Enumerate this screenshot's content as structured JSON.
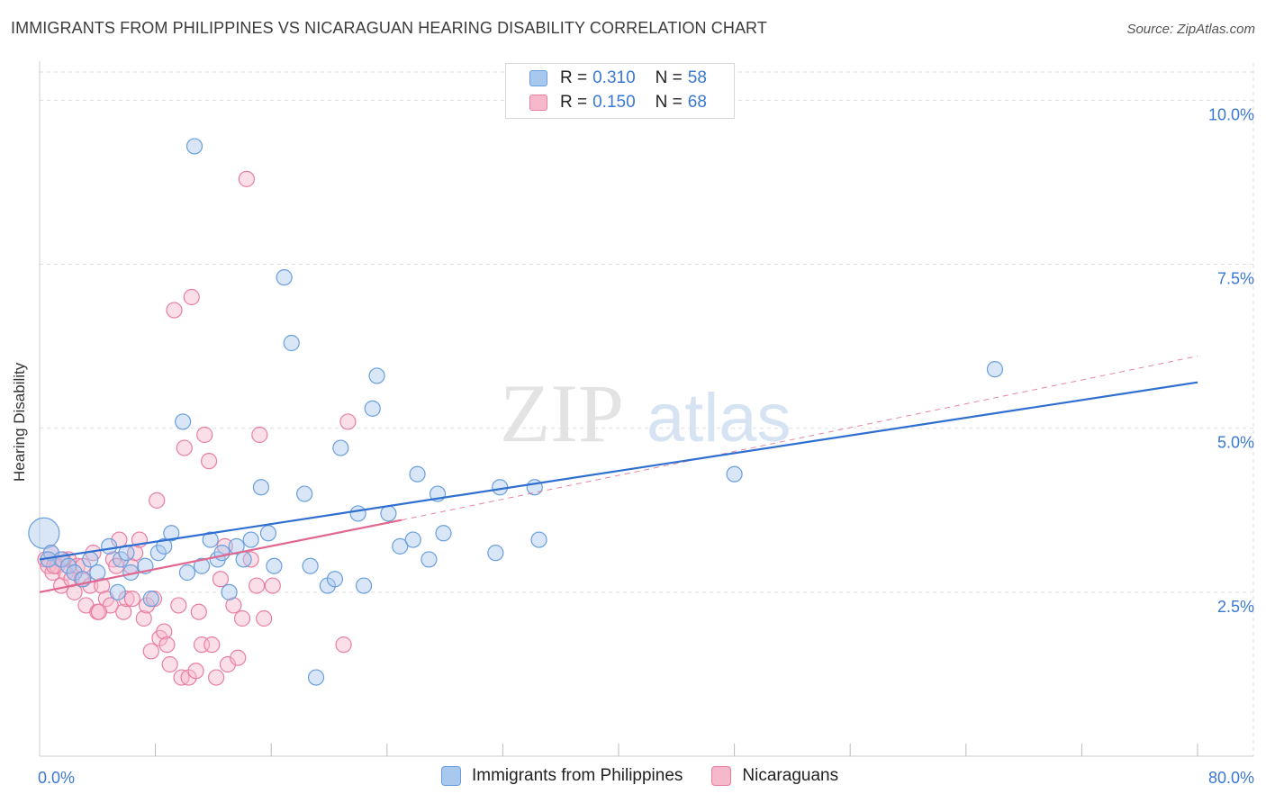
{
  "title": "IMMIGRANTS FROM PHILIPPINES VS NICARAGUAN HEARING DISABILITY CORRELATION CHART",
  "source": "Source: ZipAtlas.com",
  "watermark": {
    "zip": "ZIP",
    "atlas": "atlas"
  },
  "colors": {
    "blue_fill": "#a9c8ee",
    "blue_stroke": "#6a9fde",
    "blue_line": "#2f6fd0",
    "pink_fill": "#f6b8cb",
    "pink_stroke": "#e87fa0",
    "pink_line": "#e0678f",
    "grid": "#dddddd",
    "tick_text": "#3a78d4"
  },
  "legend": {
    "rows": [
      {
        "r_label": "R = ",
        "r_value": "0.310",
        "n_label": "N = ",
        "n_value": "58",
        "series": "blue"
      },
      {
        "r_label": "R = ",
        "r_value": "0.150",
        "n_label": "N = ",
        "n_value": "68",
        "series": "pink"
      }
    ]
  },
  "bottom_legend": [
    {
      "label": "Immigrants from Philippines",
      "series": "blue"
    },
    {
      "label": "Nicaraguans",
      "series": "pink"
    }
  ],
  "chart_data": {
    "type": "scatter",
    "title": "IMMIGRANTS FROM PHILIPPINES VS NICARAGUAN HEARING DISABILITY CORRELATION CHART",
    "xlabel": "",
    "ylabel": "Hearing Disability",
    "xlim": [
      0,
      80
    ],
    "ylim": [
      0,
      10.5
    ],
    "x_tick_labels": [
      {
        "value": 0,
        "label": "0.0%"
      },
      {
        "value": 80,
        "label": "80.0%"
      }
    ],
    "y_tick_labels": [
      {
        "value": 2.5,
        "label": "2.5%"
      },
      {
        "value": 5.0,
        "label": "5.0%"
      },
      {
        "value": 7.5,
        "label": "7.5%"
      },
      {
        "value": 10.0,
        "label": "10.0%"
      }
    ],
    "grid": true,
    "series": [
      {
        "name": "Immigrants from Philippines",
        "color": "blue",
        "trend": {
          "x0": 0,
          "y0": 3.0,
          "x1": 80,
          "y1": 5.7,
          "dashed_extension": false
        },
        "points": [
          [
            0.3,
            3.4,
            "large"
          ],
          [
            0.8,
            3.1
          ],
          [
            1.5,
            3.0
          ],
          [
            2.0,
            2.9
          ],
          [
            2.4,
            2.8
          ],
          [
            3.0,
            2.7
          ],
          [
            3.5,
            3.0
          ],
          [
            4.0,
            2.8
          ],
          [
            4.8,
            3.2
          ],
          [
            5.4,
            2.5
          ],
          [
            5.6,
            3.0
          ],
          [
            6.0,
            3.1
          ],
          [
            6.3,
            2.8
          ],
          [
            7.3,
            2.9
          ],
          [
            7.7,
            2.4
          ],
          [
            8.2,
            3.1
          ],
          [
            8.6,
            3.2
          ],
          [
            9.1,
            3.4
          ],
          [
            9.9,
            5.1
          ],
          [
            10.2,
            2.8
          ],
          [
            10.7,
            9.3
          ],
          [
            11.2,
            2.9
          ],
          [
            11.8,
            3.3
          ],
          [
            12.3,
            3.0
          ],
          [
            12.6,
            3.1
          ],
          [
            13.1,
            2.5
          ],
          [
            13.6,
            3.2
          ],
          [
            14.1,
            3.0
          ],
          [
            14.6,
            3.3
          ],
          [
            15.3,
            4.1
          ],
          [
            15.8,
            3.4
          ],
          [
            16.2,
            2.9
          ],
          [
            16.9,
            7.3
          ],
          [
            17.4,
            6.3
          ],
          [
            18.3,
            4.0
          ],
          [
            18.7,
            2.9
          ],
          [
            19.1,
            1.2
          ],
          [
            19.9,
            2.6
          ],
          [
            20.4,
            2.7
          ],
          [
            20.8,
            4.7
          ],
          [
            22.0,
            3.7
          ],
          [
            22.4,
            2.6
          ],
          [
            23.0,
            5.3
          ],
          [
            23.3,
            5.8
          ],
          [
            24.1,
            3.7
          ],
          [
            24.9,
            3.2
          ],
          [
            25.8,
            3.3
          ],
          [
            26.1,
            4.3
          ],
          [
            26.9,
            3.0
          ],
          [
            27.5,
            4.0
          ],
          [
            27.9,
            3.4
          ],
          [
            31.5,
            3.1
          ],
          [
            31.8,
            4.1
          ],
          [
            34.2,
            4.1
          ],
          [
            34.5,
            3.3
          ],
          [
            48.0,
            4.3
          ],
          [
            66.0,
            5.9
          ],
          [
            0.6,
            3.0
          ]
        ]
      },
      {
        "name": "Nicaraguans",
        "color": "pink",
        "trend": {
          "x0": 0,
          "y0": 2.5,
          "x1": 25,
          "y1": 3.6,
          "dashed_extension": true,
          "x_ext": 80,
          "y_ext": 6.1
        },
        "points": [
          [
            0.4,
            3.0
          ],
          [
            0.6,
            2.9
          ],
          [
            0.9,
            2.8
          ],
          [
            1.2,
            2.9
          ],
          [
            1.5,
            2.6
          ],
          [
            1.8,
            2.8
          ],
          [
            2.0,
            3.0
          ],
          [
            2.2,
            2.7
          ],
          [
            2.6,
            2.9
          ],
          [
            2.9,
            2.7
          ],
          [
            3.2,
            2.3
          ],
          [
            3.5,
            2.6
          ],
          [
            3.7,
            3.1
          ],
          [
            4.0,
            2.2
          ],
          [
            4.3,
            2.6
          ],
          [
            4.6,
            2.4
          ],
          [
            4.9,
            2.3
          ],
          [
            5.1,
            3.0
          ],
          [
            5.3,
            2.9
          ],
          [
            5.5,
            3.3
          ],
          [
            5.8,
            2.2
          ],
          [
            6.0,
            2.4
          ],
          [
            6.3,
            2.9
          ],
          [
            6.6,
            3.1
          ],
          [
            6.9,
            3.3
          ],
          [
            7.2,
            2.1
          ],
          [
            7.4,
            2.3
          ],
          [
            7.7,
            1.6
          ],
          [
            7.9,
            2.4
          ],
          [
            8.1,
            3.9
          ],
          [
            8.3,
            1.8
          ],
          [
            8.6,
            1.9
          ],
          [
            8.8,
            1.7
          ],
          [
            9.0,
            1.4
          ],
          [
            9.3,
            6.8
          ],
          [
            9.6,
            2.3
          ],
          [
            9.8,
            1.2
          ],
          [
            10.0,
            4.7
          ],
          [
            10.3,
            1.2
          ],
          [
            10.5,
            7.0
          ],
          [
            10.8,
            1.3
          ],
          [
            11.0,
            2.2
          ],
          [
            11.2,
            1.7
          ],
          [
            11.4,
            4.9
          ],
          [
            11.7,
            4.5
          ],
          [
            11.9,
            1.7
          ],
          [
            12.2,
            1.2
          ],
          [
            12.5,
            2.7
          ],
          [
            12.8,
            3.2
          ],
          [
            13.0,
            1.4
          ],
          [
            13.4,
            2.3
          ],
          [
            13.7,
            1.5
          ],
          [
            14.0,
            2.1
          ],
          [
            14.3,
            8.8
          ],
          [
            14.6,
            3.0
          ],
          [
            15.0,
            2.6
          ],
          [
            15.2,
            4.9
          ],
          [
            15.5,
            2.1
          ],
          [
            16.1,
            2.6
          ],
          [
            0.8,
            3.1
          ],
          [
            1.0,
            2.9
          ],
          [
            1.6,
            3.0
          ],
          [
            2.4,
            2.5
          ],
          [
            3.0,
            2.9
          ],
          [
            4.1,
            2.2
          ],
          [
            21.0,
            1.7
          ],
          [
            21.3,
            5.1
          ],
          [
            6.4,
            2.4
          ]
        ]
      }
    ]
  }
}
